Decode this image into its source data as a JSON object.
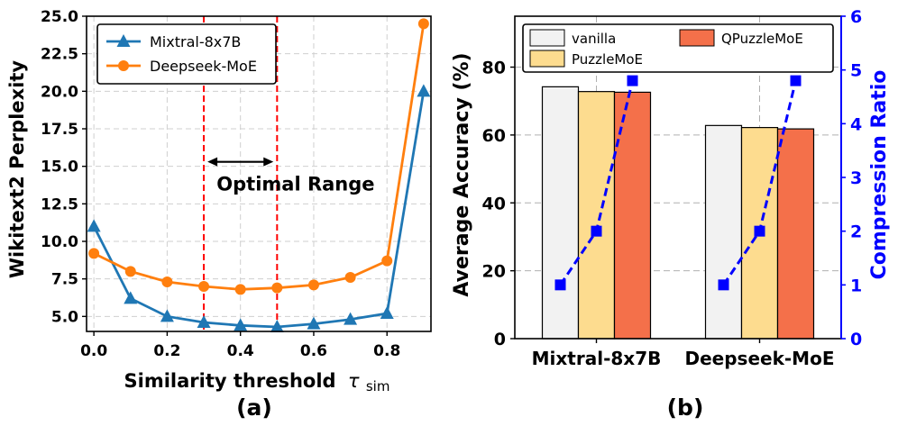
{
  "chart_data": [
    {
      "type": "line",
      "panel_label": "(a)",
      "xlabel": "Similarity threshold",
      "xlabel_symbol": "τ",
      "xlabel_subscript": "sim",
      "ylabel": "Wikitext2 Perplexity",
      "xlim": [
        -0.02,
        0.92
      ],
      "ylim": [
        4.0,
        25.0
      ],
      "xticks": [
        0.0,
        0.2,
        0.4,
        0.6,
        0.8
      ],
      "xtick_labels": [
        "0.0",
        "0.2",
        "0.4",
        "0.6",
        "0.8"
      ],
      "yticks": [
        5.0,
        7.5,
        10.0,
        12.5,
        15.0,
        17.5,
        20.0,
        22.5,
        25.0
      ],
      "ytick_labels": [
        "5.0",
        "7.5",
        "10.0",
        "12.5",
        "15.0",
        "17.5",
        "20.0",
        "22.5",
        "25.0"
      ],
      "grid": true,
      "legend_position": "top-left",
      "x": [
        0.0,
        0.1,
        0.2,
        0.3,
        0.4,
        0.5,
        0.6,
        0.7,
        0.8,
        0.9
      ],
      "series": [
        {
          "name": "Mixtral-8x7B",
          "color": "#1f77b4",
          "marker": "triangle",
          "values": [
            11.0,
            6.2,
            5.0,
            4.6,
            4.4,
            4.3,
            4.5,
            4.8,
            5.2,
            20.0
          ]
        },
        {
          "name": "Deepseek-MoE",
          "color": "#ff7f0e",
          "marker": "circle",
          "values": [
            9.2,
            8.0,
            7.3,
            7.0,
            6.8,
            6.9,
            7.1,
            7.6,
            8.7,
            24.5
          ]
        }
      ],
      "vlines": [
        0.3,
        0.5
      ],
      "vline_color": "#ff0000",
      "annotation": {
        "text": "Optimal Range",
        "arrow_from": 0.31,
        "arrow_to": 0.49,
        "arrow_y": 15.3,
        "text_x": 0.335,
        "text_y": 13.4
      }
    },
    {
      "type": "bar",
      "panel_label": "(b)",
      "categories": [
        "Mixtral-8x7B",
        "Deepseek-MoE"
      ],
      "ylabel": "Average Accuracy (%)",
      "ylabel_right": "Compression Ratio",
      "right_axis_color": "#0000ff",
      "ylim": [
        0,
        95
      ],
      "ylim_right": [
        0,
        6
      ],
      "yticks": [
        0,
        20,
        40,
        60,
        80
      ],
      "ytick_labels": [
        "0",
        "20",
        "40",
        "60",
        "80"
      ],
      "yticks_right": [
        0,
        1,
        2,
        3,
        4,
        5,
        6
      ],
      "ytick_labels_right": [
        "0",
        "1",
        "2",
        "3",
        "4",
        "5",
        "6"
      ],
      "grid": true,
      "legend_position": "top",
      "series": [
        {
          "name": "vanilla",
          "color": "#f2f2f2",
          "values": [
            74.2,
            62.8
          ],
          "compression": 1
        },
        {
          "name": "PuzzleMoE",
          "color": "#fddc8f",
          "values": [
            72.8,
            62.2
          ],
          "compression": 2
        },
        {
          "name": "QPuzzleMoE",
          "color": "#f4704a",
          "values": [
            72.6,
            61.8
          ],
          "compression": 4.8
        }
      ],
      "compression_line": {
        "color": "#0000ff",
        "marker": "square",
        "style": "dashed"
      }
    }
  ]
}
